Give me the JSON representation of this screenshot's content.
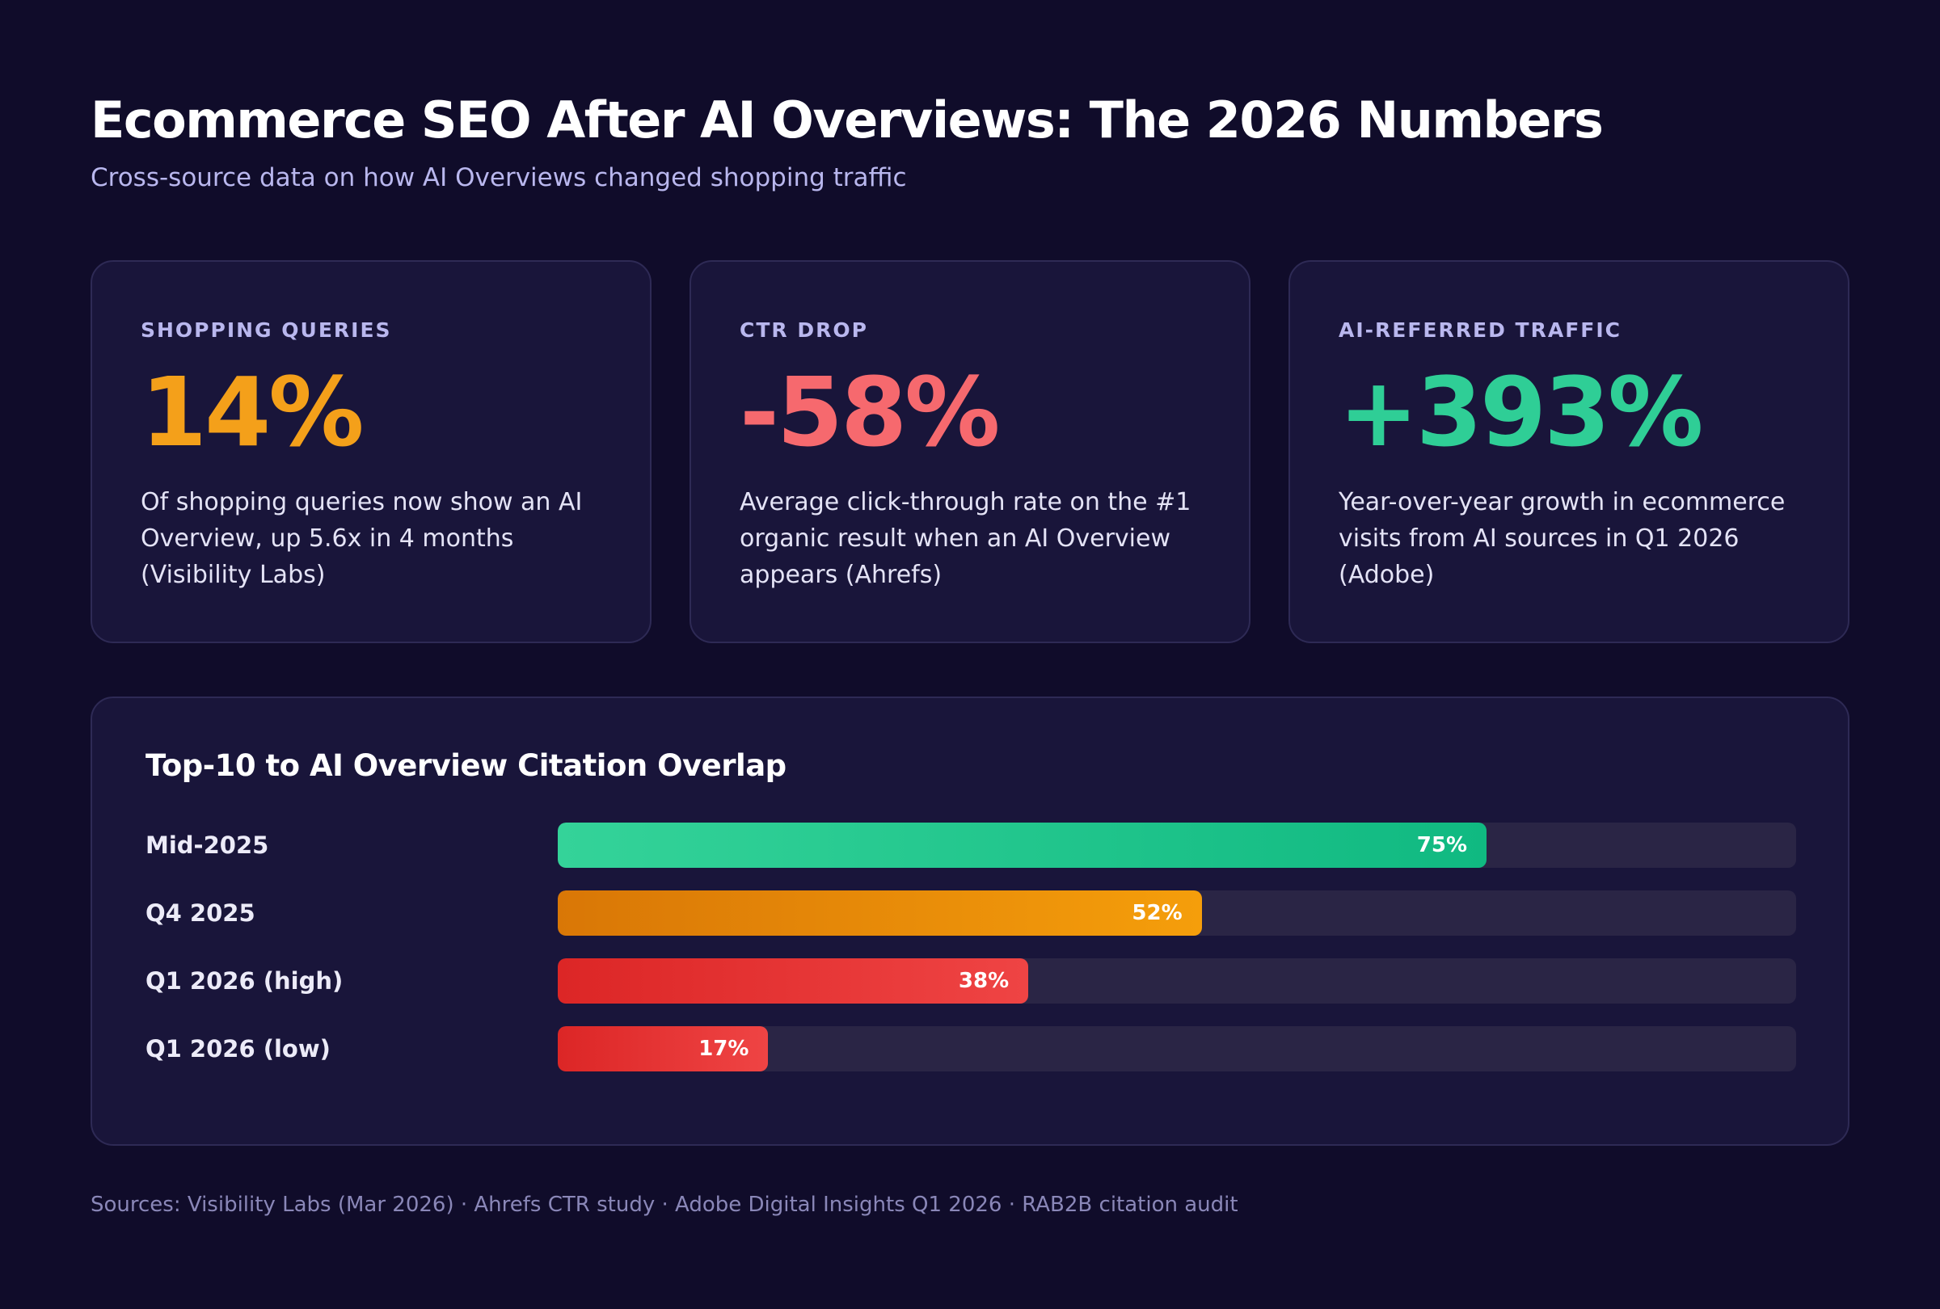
{
  "header": {
    "title": "Ecommerce SEO After AI Overviews: The 2026 Numbers",
    "subtitle": "Cross-source data on how AI Overviews changed shopping traffic"
  },
  "cards": [
    {
      "label": "SHOPPING QUERIES",
      "value": "14%",
      "description": "Of shopping queries now show an AI Overview, up 5.6x in 4 months (Visibility Labs)",
      "color": "#f4a01a"
    },
    {
      "label": "CTR DROP",
      "value": "-58%",
      "description": "Average click-through rate on the #1 organic result when an AI Overview appears (Ahrefs)",
      "color": "#f6696e"
    },
    {
      "label": "AI-REFERRED TRAFFIC",
      "value": "+393%",
      "description": "Year-over-year growth in ecommerce visits from AI sources in Q1 2026 (Adobe)",
      "color": "#2fce96"
    }
  ],
  "chart_data": {
    "type": "bar",
    "orientation": "horizontal",
    "title": "Top-10 to AI Overview Citation Overlap",
    "categories": [
      "Mid-2025",
      "Q4 2025",
      "Q1 2026 (high)",
      "Q1 2026 (low)"
    ],
    "values": [
      75,
      52,
      38,
      17
    ],
    "value_labels": [
      "75%",
      "52%",
      "38%",
      "17%"
    ],
    "xlim": [
      0,
      100
    ],
    "grid": false,
    "bar_colors": [
      [
        "#34d399",
        "#10b981"
      ],
      [
        "#d97706",
        "#f59e0b"
      ],
      [
        "#dc2626",
        "#ef4444"
      ],
      [
        "#dc2626",
        "#ef4444"
      ]
    ]
  },
  "footer": {
    "sources": "Sources: Visibility Labs (Mar 2026) · Ahrefs CTR study · Adobe Digital Insights Q1 2026 · RAB2B citation audit"
  }
}
